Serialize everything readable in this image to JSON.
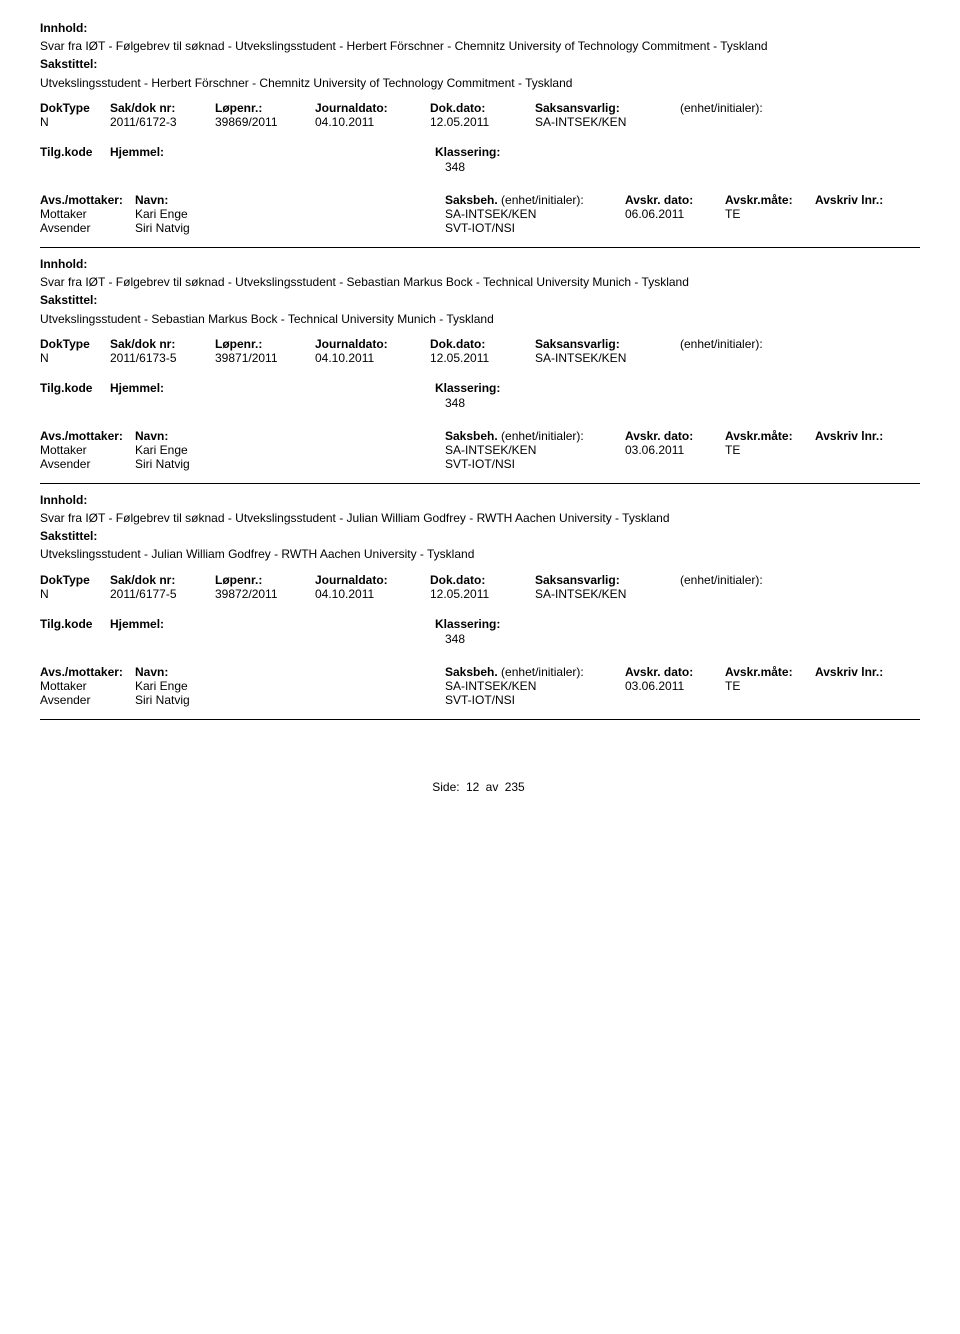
{
  "labels": {
    "innhold": "Innhold:",
    "sakstittel": "Sakstittel:",
    "doktype": "DokType",
    "sakdok": "Sak/dok nr:",
    "lopenr": "Løpenr.:",
    "journaldato": "Journaldato:",
    "dokdato": "Dok.dato:",
    "saksansvarlig": "Saksansvarlig:",
    "enhet": "(enhet/initialer):",
    "tilgkode": "Tilg.kode",
    "hjemmel": "Hjemmel:",
    "klassering": "Klassering:",
    "avsmottaker": "Avs./mottaker:",
    "navn": "Navn:",
    "saksbeh": "Saksbeh.",
    "saksbeh_enhet": "(enhet/initialer):",
    "avskr_dato": "Avskr. dato:",
    "avskr_mate": "Avskr.måte:",
    "avskriv_lnr": "Avskriv lnr.:",
    "mottaker": "Mottaker",
    "avsender": "Avsender",
    "side": "Side:",
    "av": "av"
  },
  "records": [
    {
      "innhold": "Svar fra IØT - Følgebrev til søknad - Utvekslingsstudent - Herbert Förschner - Chemnitz University of Technology Commitment - Tyskland",
      "sakstittel": "Utvekslingsstudent - Herbert Förschner - Chemnitz University of Technology Commitment - Tyskland",
      "doktype": "N",
      "sakdok": "2011/6172-3",
      "lopenr": "39869/2011",
      "journaldato": "04.10.2011",
      "dokdato": "12.05.2011",
      "saksansvarlig": "SA-INTSEK/KEN",
      "klassering": "348",
      "parties": [
        {
          "role": "Mottaker",
          "name": "Kari Enge",
          "unit": "SA-INTSEK/KEN",
          "avskr_dato": "06.06.2011",
          "avskr_mate": "TE"
        },
        {
          "role": "Avsender",
          "name": "Siri Natvig",
          "unit": "SVT-IOT/NSI",
          "avskr_dato": "",
          "avskr_mate": ""
        }
      ]
    },
    {
      "innhold": "Svar fra IØT - Følgebrev til søknad - Utvekslingsstudent - Sebastian Markus Bock - Technical University Munich - Tyskland",
      "sakstittel": "Utvekslingsstudent - Sebastian Markus Bock - Technical University Munich - Tyskland",
      "doktype": "N",
      "sakdok": "2011/6173-5",
      "lopenr": "39871/2011",
      "journaldato": "04.10.2011",
      "dokdato": "12.05.2011",
      "saksansvarlig": "SA-INTSEK/KEN",
      "klassering": "348",
      "parties": [
        {
          "role": "Mottaker",
          "name": "Kari Enge",
          "unit": "SA-INTSEK/KEN",
          "avskr_dato": "03.06.2011",
          "avskr_mate": "TE"
        },
        {
          "role": "Avsender",
          "name": "Siri Natvig",
          "unit": "SVT-IOT/NSI",
          "avskr_dato": "",
          "avskr_mate": ""
        }
      ]
    },
    {
      "innhold": "Svar fra IØT - Følgebrev til søknad - Utvekslingsstudent - Julian William Godfrey - RWTH Aachen University - Tyskland",
      "sakstittel": "Utvekslingsstudent - Julian William Godfrey - RWTH Aachen University - Tyskland",
      "doktype": "N",
      "sakdok": "2011/6177-5",
      "lopenr": "39872/2011",
      "journaldato": "04.10.2011",
      "dokdato": "12.05.2011",
      "saksansvarlig": "SA-INTSEK/KEN",
      "klassering": "348",
      "parties": [
        {
          "role": "Mottaker",
          "name": "Kari Enge",
          "unit": "SA-INTSEK/KEN",
          "avskr_dato": "03.06.2011",
          "avskr_mate": "TE"
        },
        {
          "role": "Avsender",
          "name": "Siri Natvig",
          "unit": "SVT-IOT/NSI",
          "avskr_dato": "",
          "avskr_mate": ""
        }
      ]
    }
  ],
  "footer": {
    "page": "12",
    "total": "235"
  }
}
